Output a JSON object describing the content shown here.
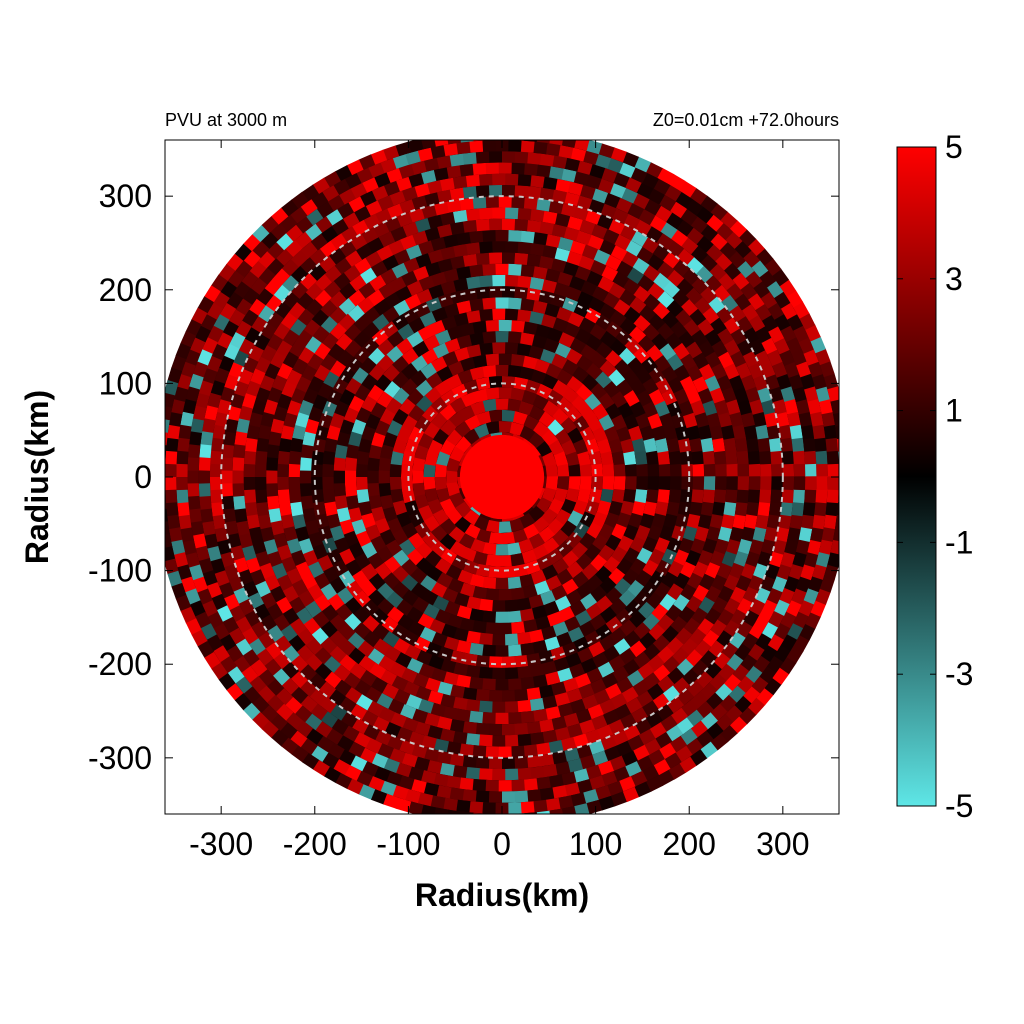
{
  "chart_data": {
    "type": "heatmap",
    "title_left": "PVU at  3000 m",
    "title_right": "Z0=0.01cm  +72.0hours",
    "xlabel": "Radius(km)",
    "ylabel": "Radius(km)",
    "xlim": [
      -360,
      360
    ],
    "ylim": [
      -360,
      360
    ],
    "xticks": [
      -300,
      -200,
      -100,
      0,
      100,
      200,
      300
    ],
    "yticks": [
      -300,
      -200,
      -100,
      0,
      100,
      200,
      300
    ],
    "domain_radius_km": 360,
    "range_rings_km": [
      100,
      200,
      300
    ],
    "core": {
      "center": [
        0,
        0
      ],
      "radius_km": 45,
      "value": 5
    },
    "colorbar": {
      "min": -5,
      "max": 5,
      "ticks": [
        5,
        3,
        1,
        -1,
        -3,
        -5
      ],
      "colors": {
        "neg": "#5ee6e6",
        "zero": "#000000",
        "pos": "#ff0000"
      }
    },
    "field_description": "mostly positive (dark to bright red) banded structure with scattered negative (cyan) patches"
  }
}
